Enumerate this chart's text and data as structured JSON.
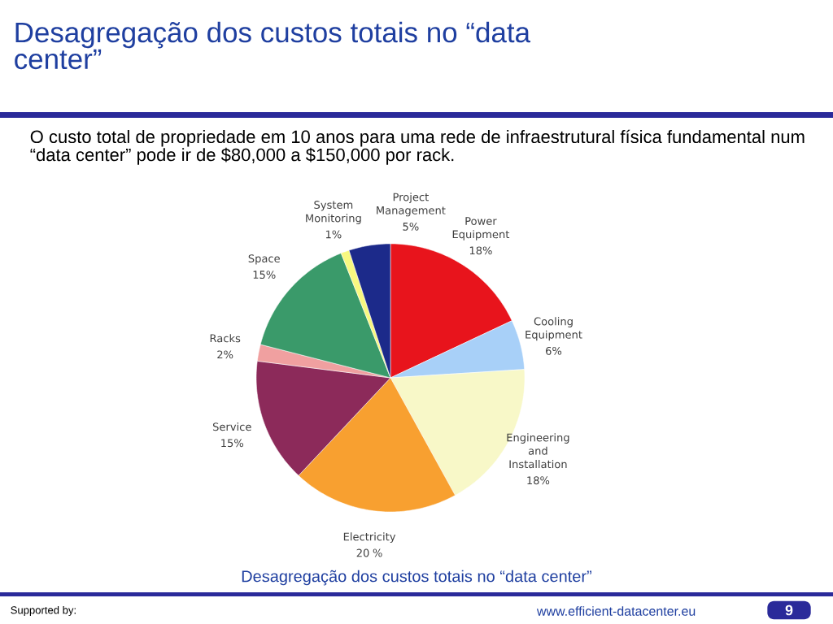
{
  "chart_data": {
    "type": "pie",
    "title": "Desagregação dos custos totais no “data center”",
    "subtitle": "O custo total de propriedade  em 10 anos para uma rede de infraestrutural física fundamental num “data center” pode ir de $80,000 a $150,000 por rack.",
    "categories": [
      "Power Equipment",
      "Cooling Equipment",
      "Engineering and Installation",
      "Electricity",
      "Service",
      "Racks",
      "Space",
      "System Monitoring",
      "Project Management"
    ],
    "values": [
      18,
      6,
      18,
      20,
      15,
      2,
      15,
      1,
      5
    ],
    "value_labels": [
      "18%",
      "6%",
      "18%",
      "20 %",
      "15%",
      "2%",
      "15%",
      "1%",
      "5%"
    ],
    "colors": [
      "#e8141c",
      "#a8d0f8",
      "#f8f8c8",
      "#f8a030",
      "#8c2a5a",
      "#f0a0a0",
      "#3a9a6a",
      "#f8f880",
      "#1c2a8a"
    ],
    "annotations": [
      "Desagregação dos custos totais no “data center”",
      "Supported by:",
      "www.efficient-datacenter.eu",
      "9"
    ]
  }
}
